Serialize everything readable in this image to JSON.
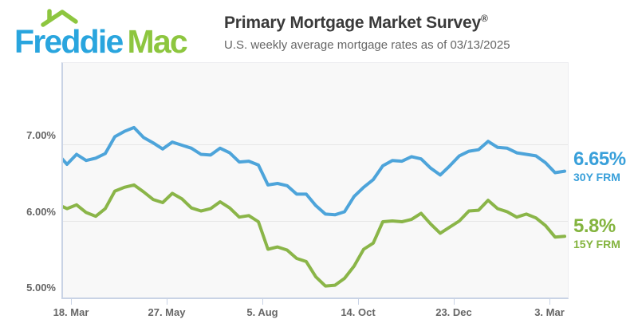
{
  "header": {
    "logo": {
      "word_blue": "Freddie",
      "word_green": "Mac",
      "blue": "#29a5de",
      "green": "#8dc63f"
    },
    "title": "Primary Mortgage Market Survey",
    "registered_mark": "®",
    "subtitle": "U.S. weekly average mortgage rates as of 03/13/2025"
  },
  "chart_data": {
    "type": "line",
    "title": "",
    "xlabel": "",
    "ylabel": "",
    "frequency": "weekly",
    "grid": "horizontal",
    "legend_position": "right-of-line-ends",
    "ylim": [
      5.0,
      8.06
    ],
    "y_gridline_values": [
      7.0,
      6.0,
      5.0
    ],
    "y_tick_labels": [
      "7.00%",
      "6.00%",
      "5.00%"
    ],
    "x_tick_labels": [
      "18. Mar",
      "27. May",
      "5. Aug",
      "14. Oct",
      "23. Dec",
      "3. Mar"
    ],
    "x_tick_interval_weeks": 10,
    "series": [
      {
        "name": "30Y FRM",
        "end_label": "6.65%",
        "color": "#4da4da",
        "label_color": "#39a0da",
        "values": [
          6.88,
          6.74,
          6.87,
          6.79,
          6.82,
          6.88,
          7.1,
          7.17,
          7.22,
          7.09,
          7.02,
          6.94,
          7.03,
          6.99,
          6.95,
          6.87,
          6.86,
          6.95,
          6.89,
          6.77,
          6.78,
          6.73,
          6.47,
          6.49,
          6.46,
          6.35,
          6.35,
          6.2,
          6.09,
          6.08,
          6.12,
          6.32,
          6.44,
          6.54,
          6.72,
          6.79,
          6.78,
          6.84,
          6.81,
          6.69,
          6.6,
          6.72,
          6.85,
          6.91,
          6.93,
          7.04,
          6.96,
          6.95,
          6.89,
          6.87,
          6.85,
          6.76,
          6.63,
          6.65
        ]
      },
      {
        "name": "15Y FRM",
        "end_label": "5.8%",
        "color": "#8ab548",
        "label_color": "#84b43f",
        "values": [
          6.22,
          6.16,
          6.21,
          6.11,
          6.06,
          6.16,
          6.39,
          6.44,
          6.47,
          6.38,
          6.28,
          6.24,
          6.36,
          6.29,
          6.17,
          6.13,
          6.16,
          6.25,
          6.17,
          6.05,
          6.07,
          5.99,
          5.63,
          5.66,
          5.62,
          5.51,
          5.47,
          5.27,
          5.15,
          5.16,
          5.25,
          5.41,
          5.63,
          5.71,
          5.99,
          6.0,
          5.99,
          6.02,
          6.1,
          5.96,
          5.84,
          5.92,
          6.0,
          6.13,
          6.14,
          6.27,
          6.16,
          6.12,
          6.05,
          6.09,
          6.04,
          5.94,
          5.79,
          5.8
        ]
      }
    ]
  }
}
